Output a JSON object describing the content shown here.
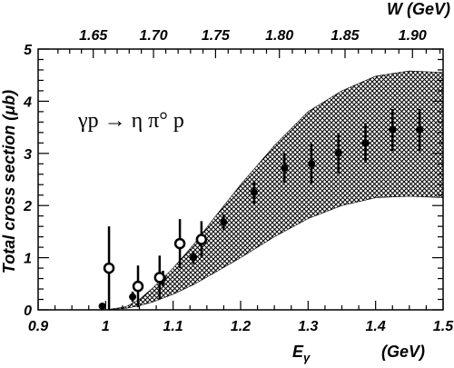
{
  "chart_data": {
    "type": "scatter",
    "reaction_label": "γp → η π° p",
    "ylabel": "Total cross section (μb)",
    "xlabel": "Eγ",
    "xlabel_main": "E",
    "xlabel_sub": "γ",
    "xlabel_unit": "(GeV)",
    "top_axis_label": "W (GeV)",
    "xlim": [
      0.9,
      1.5
    ],
    "ylim": [
      0,
      5
    ],
    "x_ticks": [
      "0.9",
      "1",
      "1.1",
      "1.2",
      "1.3",
      "1.4",
      "1.5"
    ],
    "y_ticks": [
      "0",
      "1",
      "2",
      "3",
      "4",
      "5"
    ],
    "top_ticks": [
      "1.65",
      "1.70",
      "1.75",
      "1.80",
      "1.85",
      "1.90"
    ],
    "band": {
      "x": [
        1.0,
        1.03,
        1.05,
        1.07,
        1.1,
        1.13,
        1.16,
        1.2,
        1.25,
        1.3,
        1.35,
        1.4,
        1.45,
        1.5
      ],
      "lower": [
        0.0,
        0.03,
        0.08,
        0.15,
        0.3,
        0.48,
        0.7,
        1.0,
        1.4,
        1.75,
        2.0,
        2.15,
        2.18,
        2.15
      ],
      "upper": [
        0.0,
        0.06,
        0.2,
        0.42,
        0.8,
        1.25,
        1.75,
        2.4,
        3.15,
        3.8,
        4.2,
        4.48,
        4.58,
        4.55
      ]
    },
    "series": [
      {
        "marker": "filled",
        "points": [
          {
            "x": 0.995,
            "y": 0.07,
            "err": 0.05
          },
          {
            "x": 1.04,
            "y": 0.25,
            "err": 0.1
          },
          {
            "x": 1.085,
            "y": 0.6,
            "err": 0.15
          },
          {
            "x": 1.13,
            "y": 1.0,
            "err": 0.12
          },
          {
            "x": 1.175,
            "y": 1.68,
            "err": 0.15
          },
          {
            "x": 1.22,
            "y": 2.25,
            "err": 0.22
          },
          {
            "x": 1.265,
            "y": 2.72,
            "err": 0.28
          },
          {
            "x": 1.305,
            "y": 2.8,
            "err": 0.38
          },
          {
            "x": 1.345,
            "y": 3.0,
            "err": 0.38
          },
          {
            "x": 1.385,
            "y": 3.2,
            "err": 0.38
          },
          {
            "x": 1.425,
            "y": 3.45,
            "err": 0.4
          },
          {
            "x": 1.465,
            "y": 3.45,
            "err": 0.4
          }
        ]
      },
      {
        "marker": "open",
        "points": [
          {
            "x": 1.005,
            "y": 0.8,
            "err": 0.8
          },
          {
            "x": 1.048,
            "y": 0.45,
            "err": 0.4
          },
          {
            "x": 1.08,
            "y": 0.62,
            "err": 0.42
          },
          {
            "x": 1.11,
            "y": 1.27,
            "err": 0.47
          },
          {
            "x": 1.142,
            "y": 1.35,
            "err": 0.35
          }
        ]
      }
    ]
  }
}
